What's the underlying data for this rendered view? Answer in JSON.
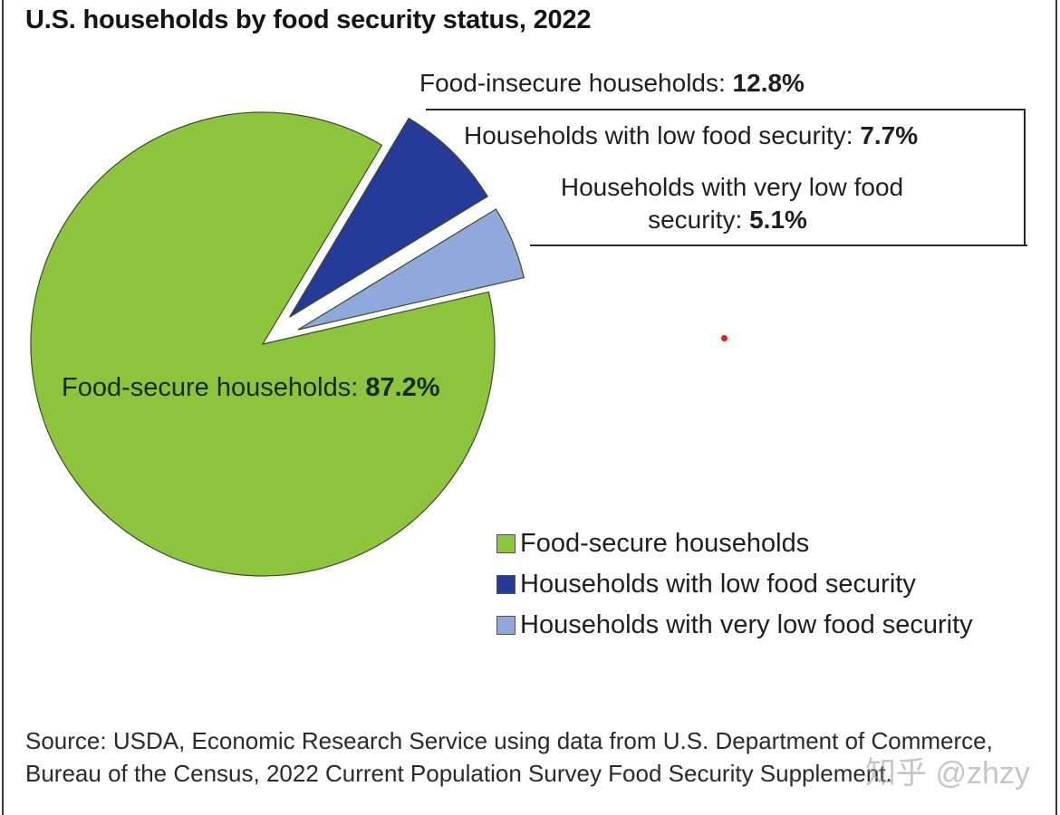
{
  "chart_data": {
    "type": "pie",
    "title": "U.S. households by food security status, 2022",
    "slices": [
      {
        "name": "Food-secure households",
        "value": 87.2,
        "color": "#8cc43e",
        "exploded": false
      },
      {
        "name": "Households with low food security",
        "value": 7.7,
        "color": "#263a99",
        "exploded": true
      },
      {
        "name": "Households with very low food security",
        "value": 5.1,
        "color": "#8fa9dc",
        "exploded": true
      }
    ],
    "annotations": {
      "food_secure": {
        "text": "Food-secure households: ",
        "value": "87.2%"
      },
      "food_insecure": {
        "text": "Food-insecure households: ",
        "value": "12.8%"
      },
      "low": {
        "text": "Households with low food security: ",
        "value": "7.7%"
      },
      "very_low_line1": "Households with very low food",
      "very_low_line2": {
        "text": "security: ",
        "value": "5.1%"
      }
    },
    "legend": {
      "placement": "bottom-right",
      "entries": [
        {
          "label": "Food-secure households",
          "color": "#8cc43e"
        },
        {
          "label": "Households with low food security",
          "color": "#263a99"
        },
        {
          "label": "Households with very low food security",
          "color": "#8fa9dc"
        }
      ]
    },
    "source": "Source: USDA, Economic Research Service using data from U.S. Department of Commerce, Bureau of the Census, 2022 Current Population Survey Food Security Supplement."
  },
  "watermark": "知乎 @zhzy"
}
